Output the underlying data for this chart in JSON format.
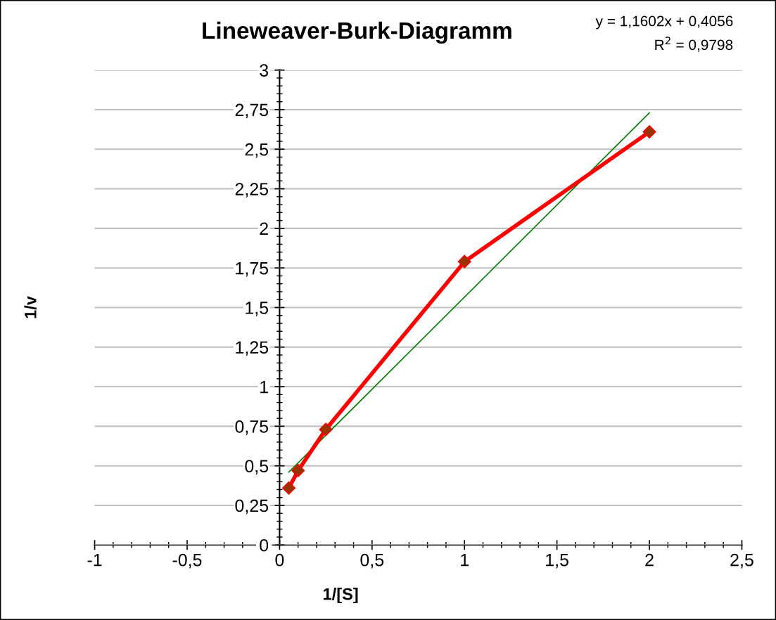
{
  "chart_data": {
    "type": "line",
    "title": "Lineweaver-Burk-Diagramm",
    "xlabel": "1/[S]",
    "ylabel": "1/v",
    "annotations": [
      "y = 1,1602x + 0,4056",
      "R$^{2}$ = 0,9798"
    ],
    "series": [
      {
        "color": "#ff0000",
        "x": [
          0.05,
          0.1,
          0.25,
          1,
          2
        ],
        "values": [
          0.36,
          0.47,
          0.73,
          1.79,
          2.61
        ],
        "marker": "diamond"
      },
      {
        "color": "#008000",
        "x": [
          0.05,
          2
        ],
        "values": [
          0.46,
          2.73
        ],
        "marker": "none"
      }
    ],
    "xlim": [
      -1,
      2.5
    ],
    "ylim": [
      0,
      3
    ],
    "xticks": [
      {
        "value": -1,
        "label": "-1"
      },
      {
        "value": -0.5,
        "label": "-0,5"
      },
      {
        "value": 0,
        "label": "0"
      },
      {
        "value": 0.5,
        "label": "0,5"
      },
      {
        "value": 1,
        "label": "1"
      },
      {
        "value": 1.5,
        "label": "1,5"
      },
      {
        "value": 2,
        "label": "2"
      },
      {
        "value": 2.5,
        "label": "2,5"
      }
    ],
    "yticks": [
      {
        "value": 0,
        "label": "0"
      },
      {
        "value": 0.25,
        "label": "0,25"
      },
      {
        "value": 0.5,
        "label": "0,5"
      },
      {
        "value": 0.75,
        "label": "0,75"
      },
      {
        "value": 1,
        "label": "1"
      },
      {
        "value": 1.25,
        "label": "1,25"
      },
      {
        "value": 1.5,
        "label": "1,5"
      },
      {
        "value": 1.75,
        "label": "1,75"
      },
      {
        "value": 2,
        "label": "2"
      },
      {
        "value": 2.25,
        "label": "2,25"
      },
      {
        "value": 2.5,
        "label": "2,5"
      },
      {
        "value": 2.75,
        "label": "2,75"
      },
      {
        "value": 3,
        "label": "3"
      }
    ],
    "grid": "y",
    "legend": false
  }
}
